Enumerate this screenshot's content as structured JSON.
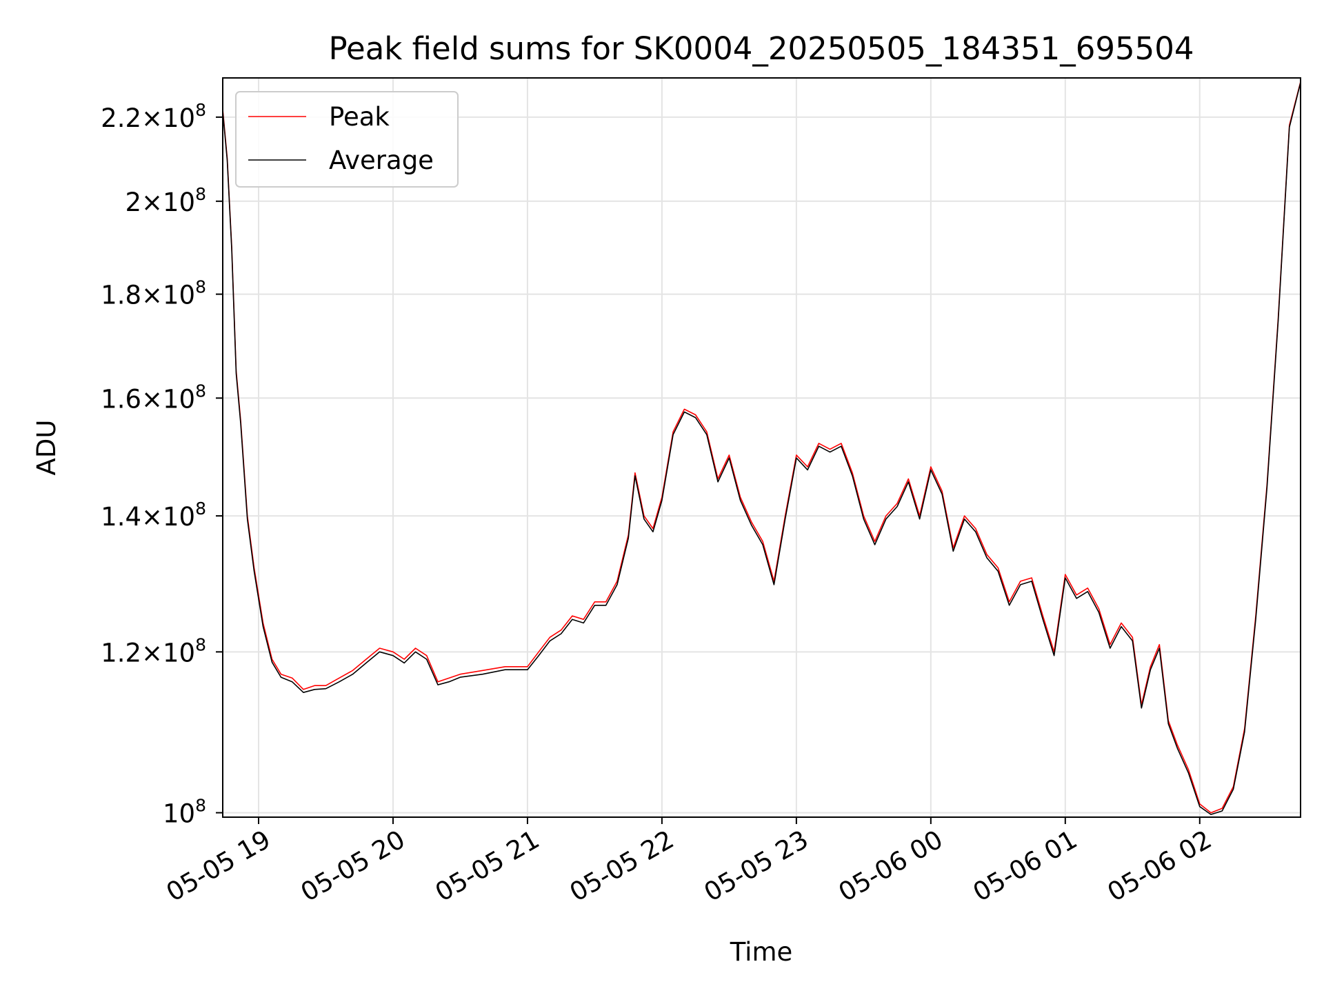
{
  "chart_data": {
    "type": "line",
    "title": "Peak field sums for SK0004_20250505_184351_695504",
    "xlabel": "Time",
    "ylabel": "ADU",
    "x_unit": "date-hour",
    "x_range": [
      "05-05 18:44",
      "05-06 02:45"
    ],
    "x_ticks": [
      "05-05 19",
      "05-05 20",
      "05-05 21",
      "05-05 22",
      "05-05 23",
      "05-06 00",
      "05-06 01",
      "05-06 02"
    ],
    "y_scale": "log",
    "y_range": [
      99500000,
      230000000
    ],
    "y_ticks": [
      {
        "value": 100000000,
        "mantissa": "",
        "exponent": "8"
      },
      {
        "value": 120000000,
        "mantissa": "1.2",
        "exponent": "8"
      },
      {
        "value": 140000000,
        "mantissa": "1.4",
        "exponent": "8"
      },
      {
        "value": 160000000,
        "mantissa": "1.6",
        "exponent": "8"
      },
      {
        "value": 180000000,
        "mantissa": "1.8",
        "exponent": "8"
      },
      {
        "value": 200000000,
        "mantissa": "2",
        "exponent": "8"
      },
      {
        "value": 220000000,
        "mantissa": "2.2",
        "exponent": "8"
      }
    ],
    "grid": true,
    "legend_position": "top-left",
    "series": [
      {
        "name": "Peak",
        "color": "#ff0000",
        "x": [
          "05-05 18:44",
          "05-05 18:46",
          "05-05 18:48",
          "05-05 18:50",
          "05-05 18:52",
          "05-05 18:55",
          "05-05 18:58",
          "05-05 19:02",
          "05-05 19:06",
          "05-05 19:10",
          "05-05 19:15",
          "05-05 19:20",
          "05-05 19:25",
          "05-05 19:30",
          "05-05 19:36",
          "05-05 19:42",
          "05-05 19:48",
          "05-05 19:54",
          "05-05 20:00",
          "05-05 20:05",
          "05-05 20:10",
          "05-05 20:15",
          "05-05 20:20",
          "05-05 20:25",
          "05-05 20:30",
          "05-05 20:40",
          "05-05 20:50",
          "05-05 21:00",
          "05-05 21:05",
          "05-05 21:10",
          "05-05 21:15",
          "05-05 21:20",
          "05-05 21:25",
          "05-05 21:30",
          "05-05 21:35",
          "05-05 21:40",
          "05-05 21:45",
          "05-05 21:48",
          "05-05 21:52",
          "05-05 21:56",
          "05-05 22:00",
          "05-05 22:05",
          "05-05 22:10",
          "05-05 22:15",
          "05-05 22:20",
          "05-05 22:25",
          "05-05 22:30",
          "05-05 22:35",
          "05-05 22:40",
          "05-05 22:45",
          "05-05 22:50",
          "05-05 22:55",
          "05-05 23:00",
          "05-05 23:05",
          "05-05 23:10",
          "05-05 23:15",
          "05-05 23:20",
          "05-05 23:25",
          "05-05 23:30",
          "05-05 23:35",
          "05-05 23:40",
          "05-05 23:45",
          "05-05 23:50",
          "05-05 23:55",
          "05-06 00:00",
          "05-06 00:05",
          "05-06 00:10",
          "05-06 00:15",
          "05-06 00:20",
          "05-06 00:25",
          "05-06 00:30",
          "05-06 00:35",
          "05-06 00:40",
          "05-06 00:45",
          "05-06 00:50",
          "05-06 00:55",
          "05-06 01:00",
          "05-06 01:05",
          "05-06 01:10",
          "05-06 01:15",
          "05-06 01:20",
          "05-06 01:25",
          "05-06 01:30",
          "05-06 01:34",
          "05-06 01:38",
          "05-06 01:42",
          "05-06 01:46",
          "05-06 01:50",
          "05-06 01:55",
          "05-06 02:00",
          "05-06 02:05",
          "05-06 02:10",
          "05-06 02:15",
          "05-06 02:20",
          "05-06 02:25",
          "05-06 02:30",
          "05-06 02:35",
          "05-06 02:40",
          "05-06 02:45"
        ],
        "values": [
          222000000,
          210000000,
          190000000,
          165000000,
          156000000,
          140000000,
          132000000,
          124000000,
          119000000,
          117000000,
          116500000,
          115000000,
          115500000,
          115500000,
          116500000,
          117500000,
          119000000,
          120500000,
          120000000,
          119000000,
          120500000,
          119500000,
          116000000,
          116500000,
          117000000,
          117500000,
          118000000,
          118000000,
          120000000,
          122000000,
          123000000,
          125000000,
          124500000,
          127000000,
          127000000,
          130000000,
          137000000,
          147000000,
          140000000,
          138000000,
          143000000,
          154000000,
          158000000,
          157000000,
          154000000,
          146000000,
          150000000,
          143000000,
          139000000,
          136000000,
          130000000,
          140000000,
          150000000,
          148000000,
          152000000,
          151000000,
          152000000,
          147000000,
          140000000,
          136000000,
          140000000,
          142000000,
          146000000,
          140000000,
          148000000,
          144000000,
          135000000,
          140000000,
          138000000,
          134000000,
          132000000,
          127000000,
          130000000,
          130500000,
          125000000,
          120000000,
          131000000,
          128000000,
          129000000,
          126000000,
          121000000,
          124000000,
          122000000,
          113000000,
          118000000,
          121000000,
          111000000,
          108000000,
          105000000,
          101000000,
          100000000,
          100500000,
          103000000,
          110000000,
          125000000,
          145000000,
          175000000,
          218000000,
          229000000
        ]
      },
      {
        "name": "Average",
        "color": "#000000",
        "x": [
          "05-05 18:44",
          "05-05 18:46",
          "05-05 18:48",
          "05-05 18:50",
          "05-05 18:52",
          "05-05 18:55",
          "05-05 18:58",
          "05-05 19:02",
          "05-05 19:06",
          "05-05 19:10",
          "05-05 19:15",
          "05-05 19:20",
          "05-05 19:25",
          "05-05 19:30",
          "05-05 19:36",
          "05-05 19:42",
          "05-05 19:48",
          "05-05 19:54",
          "05-05 20:00",
          "05-05 20:05",
          "05-05 20:10",
          "05-05 20:15",
          "05-05 20:20",
          "05-05 20:25",
          "05-05 20:30",
          "05-05 20:40",
          "05-05 20:50",
          "05-05 21:00",
          "05-05 21:05",
          "05-05 21:10",
          "05-05 21:15",
          "05-05 21:20",
          "05-05 21:25",
          "05-05 21:30",
          "05-05 21:35",
          "05-05 21:40",
          "05-05 21:45",
          "05-05 21:48",
          "05-05 21:52",
          "05-05 21:56",
          "05-05 22:00",
          "05-05 22:05",
          "05-05 22:10",
          "05-05 22:15",
          "05-05 22:20",
          "05-05 22:25",
          "05-05 22:30",
          "05-05 22:35",
          "05-05 22:40",
          "05-05 22:45",
          "05-05 22:50",
          "05-05 22:55",
          "05-05 23:00",
          "05-05 23:05",
          "05-05 23:10",
          "05-05 23:15",
          "05-05 23:20",
          "05-05 23:25",
          "05-05 23:30",
          "05-05 23:35",
          "05-05 23:40",
          "05-05 23:45",
          "05-05 23:50",
          "05-05 23:55",
          "05-06 00:00",
          "05-06 00:05",
          "05-06 00:10",
          "05-06 00:15",
          "05-06 00:20",
          "05-06 00:25",
          "05-06 00:30",
          "05-06 00:35",
          "05-06 00:40",
          "05-06 00:45",
          "05-06 00:50",
          "05-06 00:55",
          "05-06 01:00",
          "05-06 01:05",
          "05-06 01:10",
          "05-06 01:15",
          "05-06 01:20",
          "05-06 01:25",
          "05-06 01:30",
          "05-06 01:34",
          "05-06 01:38",
          "05-06 01:42",
          "05-06 01:46",
          "05-06 01:50",
          "05-06 01:55",
          "05-06 02:00",
          "05-06 02:05",
          "05-06 02:10",
          "05-06 02:15",
          "05-06 02:20",
          "05-06 02:25",
          "05-06 02:30",
          "05-06 02:35",
          "05-06 02:40",
          "05-06 02:45"
        ],
        "values": [
          221500000,
          209500000,
          189500000,
          164500000,
          155500000,
          139500000,
          131500000,
          123500000,
          118600000,
          116600000,
          116000000,
          114600000,
          115000000,
          115100000,
          116000000,
          117000000,
          118500000,
          120000000,
          119500000,
          118500000,
          120000000,
          119000000,
          115600000,
          116000000,
          116600000,
          117000000,
          117600000,
          117600000,
          119500000,
          121500000,
          122500000,
          124500000,
          124000000,
          126500000,
          126500000,
          129500000,
          136500000,
          146500000,
          139500000,
          137500000,
          142500000,
          153500000,
          157500000,
          156500000,
          153500000,
          145500000,
          149500000,
          142500000,
          138500000,
          135500000,
          129500000,
          139500000,
          149500000,
          147500000,
          151500000,
          150500000,
          151500000,
          146500000,
          139500000,
          135500000,
          139500000,
          141500000,
          145500000,
          139500000,
          147500000,
          143500000,
          134500000,
          139500000,
          137500000,
          133500000,
          131500000,
          126500000,
          129500000,
          130000000,
          124500000,
          119500000,
          130500000,
          127500000,
          128500000,
          125500000,
          120500000,
          123500000,
          121500000,
          112600000,
          117600000,
          120500000,
          110600000,
          107600000,
          104600000,
          100700000,
          99800000,
          100200000,
          102700000,
          109600000,
          124500000,
          144500000,
          174500000,
          217500000,
          228800000
        ]
      }
    ]
  }
}
